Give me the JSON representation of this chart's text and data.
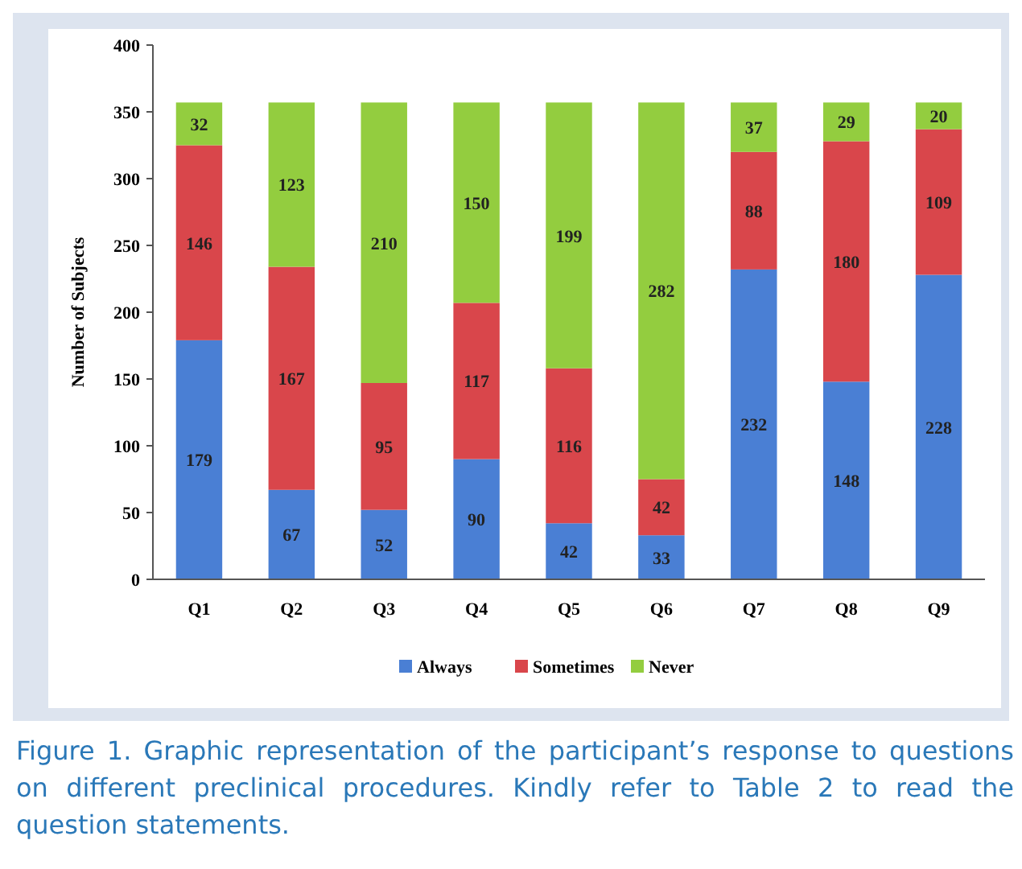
{
  "chart_data": {
    "type": "bar",
    "stacked": true,
    "ylabel": "Number of Subjects",
    "categories": [
      "Q1",
      "Q2",
      "Q3",
      "Q4",
      "Q5",
      "Q6",
      "Q7",
      "Q8",
      "Q9"
    ],
    "series": [
      {
        "name": "Always",
        "color": "#4a7fd4",
        "values": [
          179,
          67,
          52,
          90,
          42,
          33,
          232,
          148,
          228
        ]
      },
      {
        "name": "Sometimes",
        "color": "#d9464b",
        "values": [
          146,
          167,
          95,
          117,
          116,
          42,
          88,
          180,
          109
        ]
      },
      {
        "name": "Never",
        "color": "#93cd3f",
        "values": [
          32,
          123,
          210,
          150,
          199,
          282,
          37,
          29,
          20
        ]
      }
    ],
    "ylim": [
      0,
      400
    ],
    "yticks": [
      0,
      50,
      100,
      150,
      200,
      250,
      300,
      350,
      400
    ],
    "data_labels": true,
    "legend": "bottom",
    "grid": false,
    "annotations": [
      "Figure 1. Graphic representation of the participant’s response to questions on different preclinical procedures. Kindly refer to Table 2 to read the question statements."
    ]
  }
}
